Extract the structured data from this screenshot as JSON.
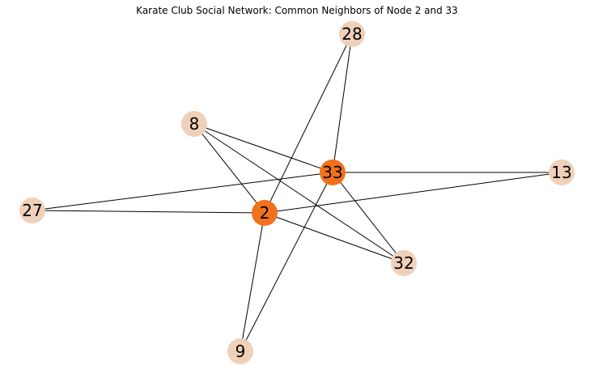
{
  "title": "Karate Club Social Network: Common Neighbors of Node 2 and 33",
  "colors": {
    "highlight": "#f2711c",
    "neighbor": "#f0d0b8",
    "edge": "#000000"
  },
  "nodes": [
    {
      "id": "28",
      "label": "28",
      "role": "neighbor"
    },
    {
      "id": "8",
      "label": "8",
      "role": "neighbor"
    },
    {
      "id": "33",
      "label": "33",
      "role": "highlight"
    },
    {
      "id": "13",
      "label": "13",
      "role": "neighbor"
    },
    {
      "id": "27",
      "label": "27",
      "role": "neighbor"
    },
    {
      "id": "2",
      "label": "2",
      "role": "highlight"
    },
    {
      "id": "32",
      "label": "32",
      "role": "neighbor"
    },
    {
      "id": "9",
      "label": "9",
      "role": "neighbor"
    }
  ],
  "edges": [
    [
      "2",
      "28"
    ],
    [
      "2",
      "8"
    ],
    [
      "2",
      "13"
    ],
    [
      "2",
      "27"
    ],
    [
      "2",
      "32"
    ],
    [
      "2",
      "9"
    ],
    [
      "33",
      "28"
    ],
    [
      "33",
      "8"
    ],
    [
      "33",
      "13"
    ],
    [
      "33",
      "27"
    ],
    [
      "33",
      "32"
    ],
    [
      "33",
      "9"
    ],
    [
      "8",
      "32"
    ]
  ]
}
